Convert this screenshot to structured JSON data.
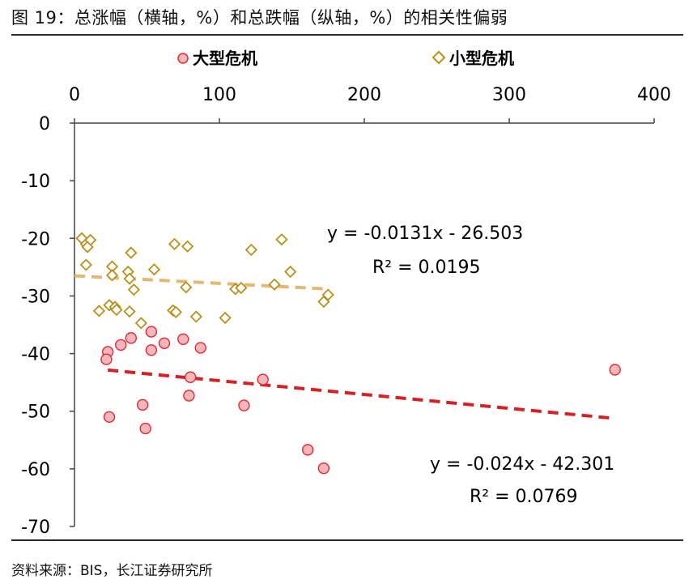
{
  "header": {
    "title": "图 19：总涨幅（横轴，%）和总跌幅（纵轴，%）的相关性偏弱"
  },
  "footer": {
    "source": "资料来源：BIS，长江证券研究所"
  },
  "colors": {
    "large_fill": "#f4b6bb",
    "large_stroke": "#e02a34",
    "large_trend": "#d71f24",
    "small_stroke": "#b8901c",
    "small_trend": "#e3b874",
    "axis": "#444444"
  },
  "chart_data": {
    "type": "scatter",
    "title": "",
    "xlabel": "",
    "ylabel": "",
    "xlim": [
      0,
      400
    ],
    "ylim": [
      -70,
      0
    ],
    "xaxis_position": "top",
    "x_ticks": [
      "0",
      "100",
      "200",
      "300",
      "400"
    ],
    "y_ticks": [
      "0",
      "-10",
      "-20",
      "-30",
      "-40",
      "-50",
      "-60",
      "-70"
    ],
    "grid": false,
    "legend_position": "top",
    "series": [
      {
        "name": "大型危机",
        "marker": "circle",
        "points": [
          [
            23,
            -39.7
          ],
          [
            22,
            -41.0
          ],
          [
            24,
            -51.0
          ],
          [
            32,
            -38.5
          ],
          [
            39,
            -37.3
          ],
          [
            53,
            -36.2
          ],
          [
            53,
            -39.4
          ],
          [
            62,
            -38.2
          ],
          [
            75,
            -37.5
          ],
          [
            87,
            -39.0
          ],
          [
            49,
            -53.0
          ],
          [
            47,
            -48.9
          ],
          [
            80,
            -44.1
          ],
          [
            79,
            -47.3
          ],
          [
            117,
            -49.0
          ],
          [
            130,
            -44.5
          ],
          [
            161,
            -56.7
          ],
          [
            172,
            -59.9
          ],
          [
            373,
            -42.8
          ]
        ],
        "trend": {
          "slope": -0.024,
          "intercept": -42.301,
          "x_range": [
            23,
            373
          ]
        },
        "equation": "y = -0.024x - 42.301",
        "r2": "R² = 0.0769"
      },
      {
        "name": "小型危机",
        "marker": "diamond",
        "points": [
          [
            5,
            -20.0
          ],
          [
            8,
            -21.0
          ],
          [
            11,
            -20.3
          ],
          [
            9,
            -21.5
          ],
          [
            8,
            -24.6
          ],
          [
            26,
            -24.9
          ],
          [
            26,
            -26.4
          ],
          [
            37,
            -25.8
          ],
          [
            38,
            -27.0
          ],
          [
            39,
            -22.5
          ],
          [
            41,
            -28.9
          ],
          [
            17,
            -32.6
          ],
          [
            24,
            -31.6
          ],
          [
            28,
            -31.9
          ],
          [
            29,
            -32.4
          ],
          [
            38,
            -32.7
          ],
          [
            46,
            -34.7
          ],
          [
            55,
            -25.4
          ],
          [
            69,
            -21.0
          ],
          [
            78,
            -21.4
          ],
          [
            77,
            -28.5
          ],
          [
            68,
            -32.5
          ],
          [
            70,
            -32.8
          ],
          [
            84,
            -33.6
          ],
          [
            104,
            -33.8
          ],
          [
            111,
            -28.8
          ],
          [
            115,
            -28.6
          ],
          [
            122,
            -22.0
          ],
          [
            138,
            -28.0
          ],
          [
            143,
            -20.2
          ],
          [
            149,
            -25.8
          ],
          [
            172,
            -31.0
          ],
          [
            175,
            -29.8
          ]
        ],
        "trend": {
          "slope": -0.0131,
          "intercept": -26.503,
          "x_range": [
            0,
            175
          ]
        },
        "equation": "y = -0.0131x - 26.503",
        "r2": "R² = 0.0195"
      }
    ]
  }
}
